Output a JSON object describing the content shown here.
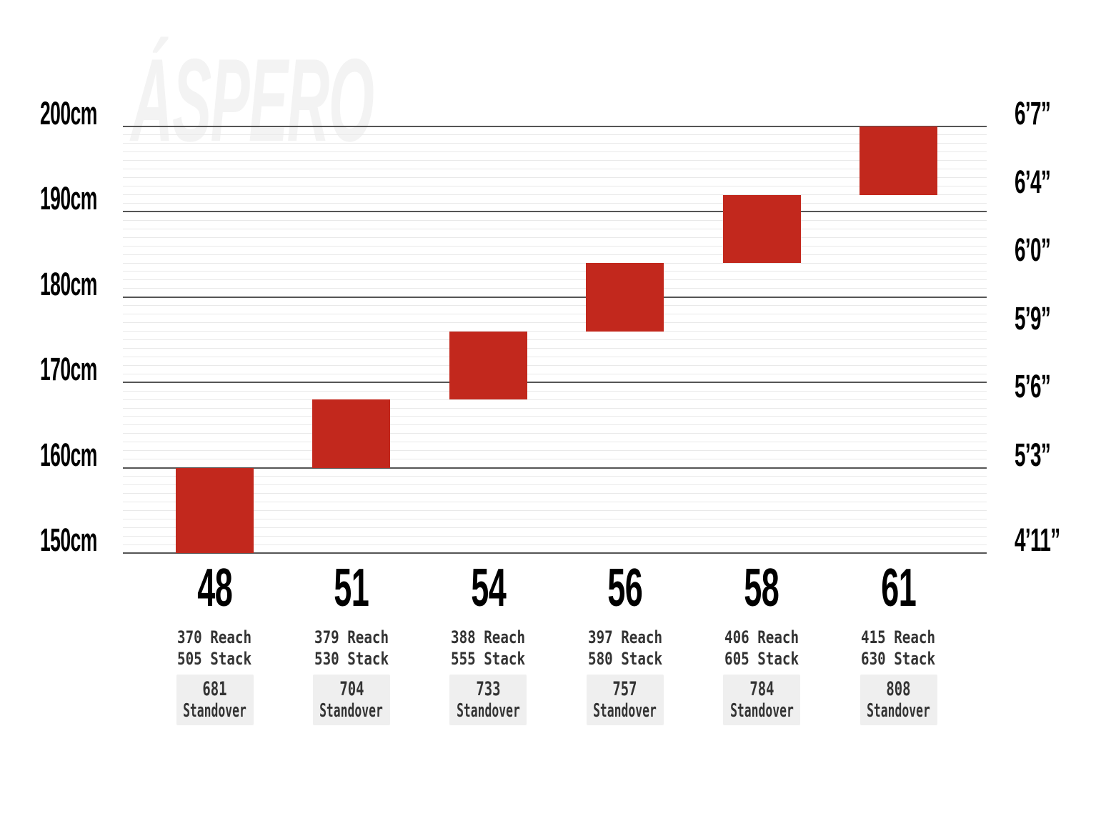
{
  "watermark": "ÁSPERO",
  "colors": {
    "bar_red": "#c2281d",
    "major_gridline": "#555555",
    "minor_gridline": "#e9e9e9",
    "standover_box_bg": "#efefef",
    "axis_text": "#000000",
    "detail_text": "#333333",
    "watermark_gray": "#f3f3f3"
  },
  "chart_data": {
    "type": "bar",
    "subtype": "floating-range-columns (rider height fit range per frame size)",
    "ylim_cm": [
      150,
      200
    ],
    "gridlines": {
      "major_step_cm": 10,
      "minor_step_cm": 1,
      "grid_on": true
    },
    "y_axis_left": {
      "unit": "cm",
      "ticks": [
        {
          "label": "200cm",
          "cm": 200
        },
        {
          "label": "190cm",
          "cm": 190
        },
        {
          "label": "180cm",
          "cm": 180
        },
        {
          "label": "170cm",
          "cm": 170
        },
        {
          "label": "160cm",
          "cm": 160
        },
        {
          "label": "150cm",
          "cm": 150
        }
      ]
    },
    "y_axis_right": {
      "unit": "feet/inches",
      "ticks": [
        {
          "label": "6’7”",
          "at_cm": 200
        },
        {
          "label": "6’4”",
          "at_cm": 192
        },
        {
          "label": "6’0”",
          "at_cm": 184
        },
        {
          "label": "5’9”",
          "at_cm": 176
        },
        {
          "label": "5’6”",
          "at_cm": 168
        },
        {
          "label": "5’3”",
          "at_cm": 160
        },
        {
          "label": "4’11”",
          "at_cm": 150
        }
      ]
    },
    "labels": {
      "reach": "Reach",
      "stack": "Stack",
      "standover": "Standover"
    },
    "sizes": [
      {
        "size": "48",
        "height_range_cm": [
          150,
          160
        ],
        "reach": 370,
        "stack": 505,
        "standover": 681
      },
      {
        "size": "51",
        "height_range_cm": [
          160,
          168
        ],
        "reach": 379,
        "stack": 530,
        "standover": 704
      },
      {
        "size": "54",
        "height_range_cm": [
          168,
          176
        ],
        "reach": 388,
        "stack": 555,
        "standover": 733
      },
      {
        "size": "56",
        "height_range_cm": [
          176,
          184
        ],
        "reach": 397,
        "stack": 580,
        "standover": 757
      },
      {
        "size": "58",
        "height_range_cm": [
          184,
          192
        ],
        "reach": 406,
        "stack": 605,
        "standover": 784
      },
      {
        "size": "61",
        "height_range_cm": [
          192,
          200
        ],
        "reach": 415,
        "stack": 630,
        "standover": 808
      }
    ]
  }
}
